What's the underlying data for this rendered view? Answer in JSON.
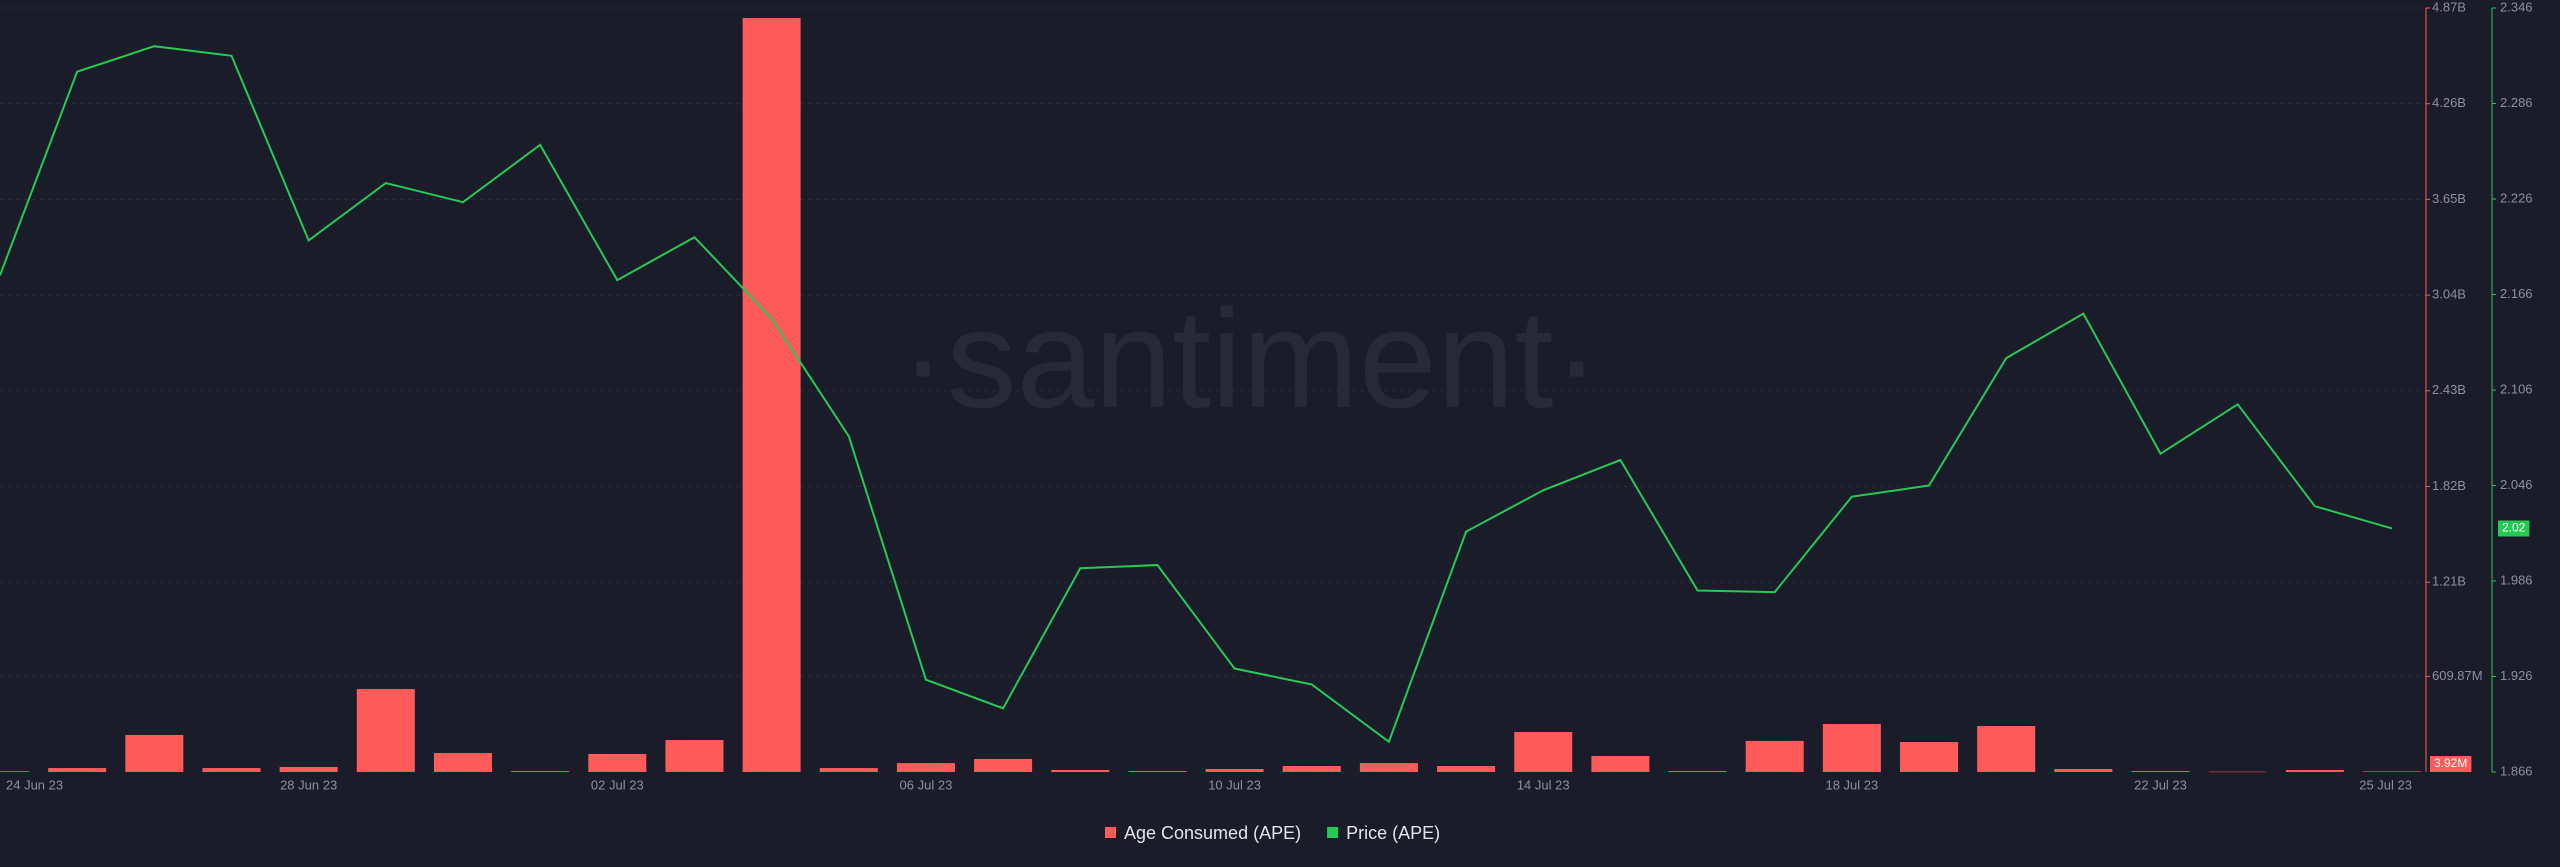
{
  "chart_data": {
    "type": "bar",
    "watermark": "·santiment·",
    "categories": [
      "24 Jun 23",
      null,
      null,
      null,
      "28 Jun 23",
      null,
      null,
      null,
      "02 Jul 23",
      null,
      null,
      null,
      "06 Jul 23",
      null,
      null,
      null,
      "10 Jul 23",
      null,
      null,
      null,
      "14 Jul 23",
      null,
      null,
      null,
      "18 Jul 23",
      null,
      null,
      null,
      "22 Jul 23",
      null,
      null,
      "25 Jul 23"
    ],
    "series": [
      {
        "name": "Age Consumed (APE)",
        "type": "bar",
        "color": "#ff5b5b",
        "values": [
          5000000,
          25000000,
          236000000,
          25000000,
          32000000,
          529000000,
          121000000,
          6000000,
          115000000,
          204000000,
          4806000000,
          25000000,
          57000000,
          83000000,
          13000000,
          6000000,
          19000000,
          38000000,
          57000000,
          38000000,
          255000000,
          102000000,
          6000000,
          198000000,
          306000000,
          191000000,
          293000000,
          19000000,
          6000000,
          2000000,
          13000000,
          3920000
        ],
        "value_labels": [
          null,
          null,
          null,
          null,
          null,
          null,
          null,
          null,
          null,
          null,
          null,
          null,
          null,
          null,
          null,
          null,
          null,
          null,
          null,
          null,
          null,
          null,
          null,
          null,
          null,
          null,
          null,
          null,
          null,
          null,
          null,
          "3.92M"
        ]
      },
      {
        "name": "Price (APE)",
        "type": "line",
        "axis": "y2",
        "color": "#26c953",
        "values": [
          2.178,
          2.306,
          2.322,
          2.316,
          2.2,
          2.236,
          2.224,
          2.26,
          2.175,
          2.202,
          2.151,
          2.077,
          1.924,
          1.906,
          1.994,
          1.996,
          1.931,
          1.921,
          1.885,
          2.017,
          2.043,
          2.062,
          1.98,
          1.979,
          2.039,
          2.046,
          2.126,
          2.154,
          2.066,
          2.097,
          2.033,
          2.019
        ],
        "value_labels": [
          null,
          null,
          null,
          null,
          null,
          null,
          null,
          null,
          null,
          null,
          null,
          null,
          null,
          null,
          null,
          null,
          null,
          null,
          null,
          null,
          null,
          null,
          null,
          null,
          null,
          null,
          null,
          null,
          null,
          null,
          null,
          "2.02"
        ]
      }
    ],
    "ylim": [
      0,
      4870000000
    ],
    "yticks": [
      {
        "value": 609870000,
        "label": "609.87M"
      },
      {
        "value": 1210000000,
        "label": "1.21B"
      },
      {
        "value": 1820000000,
        "label": "1.82B"
      },
      {
        "value": 2430000000,
        "label": "2.43B"
      },
      {
        "value": 3040000000,
        "label": "3.04B"
      },
      {
        "value": 3650000000,
        "label": "3.65B"
      },
      {
        "value": 4260000000,
        "label": "4.26B"
      },
      {
        "value": 4870000000,
        "label": "4.87B"
      }
    ],
    "y2lim": [
      1.866,
      2.346
    ],
    "y2ticks": [
      1.866,
      1.926,
      1.986,
      2.046,
      2.106,
      2.166,
      2.226,
      2.286,
      2.346
    ],
    "grid": true
  }
}
